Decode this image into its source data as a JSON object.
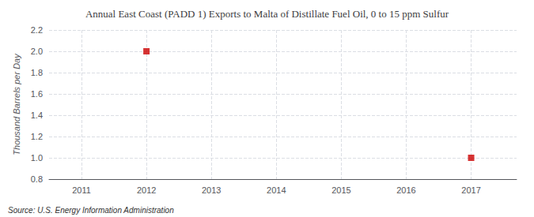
{
  "chart_data": {
    "type": "scatter",
    "title": "Annual East Coast (PADD 1) Exports to Malta of Distillate Fuel Oil, 0 to 15 ppm Sulfur",
    "ylabel": "Thousand Barrels per Day",
    "annotations": [
      "Source: U.S. Energy Information Administration"
    ],
    "x": [
      2012,
      2017
    ],
    "values": [
      2.0,
      1.0
    ],
    "color": "#cc0000",
    "marker": "square",
    "xlim": [
      2010.5,
      2017.7
    ],
    "xticks": [
      2011,
      2012,
      2013,
      2014,
      2015,
      2016,
      2017
    ],
    "ylim": [
      0.8,
      2.2
    ],
    "yticks": [
      0.8,
      {
        "value": 1.0,
        "label": "1.0"
      },
      1.2,
      1.4,
      1.6,
      1.8,
      {
        "value": 2.0,
        "label": "2.0"
      },
      2.2
    ],
    "grid": true
  }
}
